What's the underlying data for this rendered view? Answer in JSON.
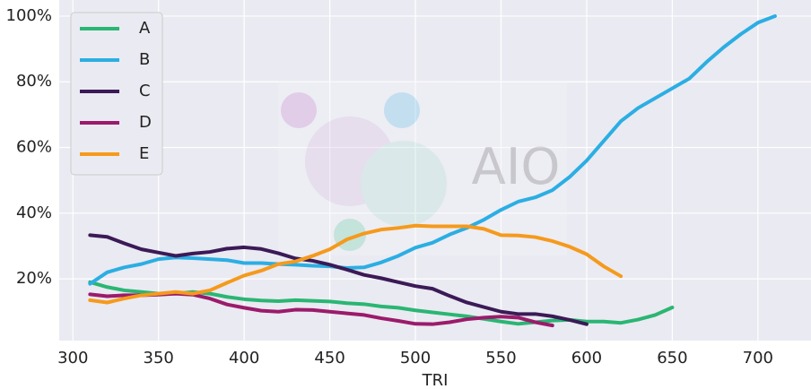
{
  "chart_data": {
    "type": "line",
    "xlabel": "TRI",
    "watermark": "AIO",
    "x": [
      310,
      320,
      330,
      340,
      350,
      360,
      370,
      380,
      390,
      400,
      410,
      420,
      430,
      440,
      450,
      460,
      470,
      480,
      490,
      500,
      510,
      520,
      530,
      540,
      550,
      560,
      570,
      580,
      590,
      600,
      610,
      620,
      630,
      640,
      650,
      660,
      670,
      680,
      690,
      700,
      710
    ],
    "series": [
      {
        "name": "A",
        "color": "#2ab673",
        "values": [
          19,
          17.5,
          16.5,
          16,
          15.5,
          15.5,
          16,
          15.5,
          14.5,
          13.8,
          13.4,
          13.2,
          13.5,
          13.3,
          13.1,
          12.6,
          12.3,
          11.6,
          11.2,
          10.4,
          9.8,
          9.2,
          8.6,
          7.8,
          7.0,
          6.3,
          6.8,
          7.3,
          7.5,
          7.0,
          7.0,
          6.6,
          7.6,
          9.0,
          11.3,
          null,
          null,
          null,
          null,
          null,
          null
        ]
      },
      {
        "name": "B",
        "color": "#2baee3",
        "values": [
          18.5,
          22,
          23.5,
          24.5,
          26,
          26.5,
          26.3,
          26,
          25.7,
          24.8,
          24.8,
          24.5,
          24.3,
          24,
          23.8,
          23.3,
          23.5,
          25,
          27,
          29.5,
          31,
          33.5,
          35.5,
          38,
          41,
          43.5,
          44.8,
          47,
          51,
          56,
          62,
          68,
          72,
          75,
          78,
          81,
          86,
          90.5,
          94.5,
          98,
          100
        ]
      },
      {
        "name": "C",
        "color": "#3b1a57",
        "values": [
          33.3,
          32.8,
          30.8,
          29,
          28,
          27,
          27.7,
          28.2,
          29.2,
          29.6,
          29.1,
          27.8,
          26.2,
          25.5,
          24.3,
          22.8,
          21.2,
          20.2,
          19,
          17.8,
          17,
          14.8,
          12.8,
          11.4,
          10,
          9.3,
          9.3,
          8.6,
          7.5,
          6.2,
          null,
          null,
          null,
          null,
          null,
          null,
          null,
          null,
          null,
          null,
          null
        ]
      },
      {
        "name": "D",
        "color": "#9b1b6b",
        "values": [
          15.3,
          14.7,
          15,
          15,
          15.2,
          15.5,
          15.2,
          14,
          12.2,
          11.2,
          10.3,
          10,
          10.6,
          10.5,
          10,
          9.5,
          9,
          8,
          7.2,
          6.3,
          6.2,
          6.8,
          7.7,
          8.2,
          8.5,
          8.2,
          6.8,
          5.8,
          null,
          null,
          null,
          null,
          null,
          null,
          null,
          null,
          null,
          null,
          null,
          null,
          null
        ]
      },
      {
        "name": "E",
        "color": "#f59a1c",
        "values": [
          13.5,
          12.8,
          14,
          15,
          15.5,
          16,
          15.5,
          16.5,
          18.8,
          21,
          22.5,
          24.5,
          25.3,
          27,
          29,
          32,
          33.8,
          35,
          35.5,
          36.2,
          36,
          36,
          36,
          35.2,
          33.3,
          33.2,
          32.7,
          31.5,
          29.8,
          27.5,
          23.8,
          20.8,
          null,
          null,
          null,
          null,
          null,
          null,
          null,
          null,
          null
        ]
      }
    ],
    "xlim": [
      292,
      731
    ],
    "ylim": [
      1.2,
      104.9
    ],
    "xticks": [
      300,
      350,
      400,
      450,
      500,
      550,
      600,
      650,
      700
    ],
    "yticks": [
      {
        "value": 20,
        "label": "20%"
      },
      {
        "value": 40,
        "label": "40%"
      },
      {
        "value": 60,
        "label": "60%"
      },
      {
        "value": 80,
        "label": "80%"
      },
      {
        "value": 100,
        "label": "100%"
      }
    ],
    "grid": true,
    "legend": "upper left"
  }
}
